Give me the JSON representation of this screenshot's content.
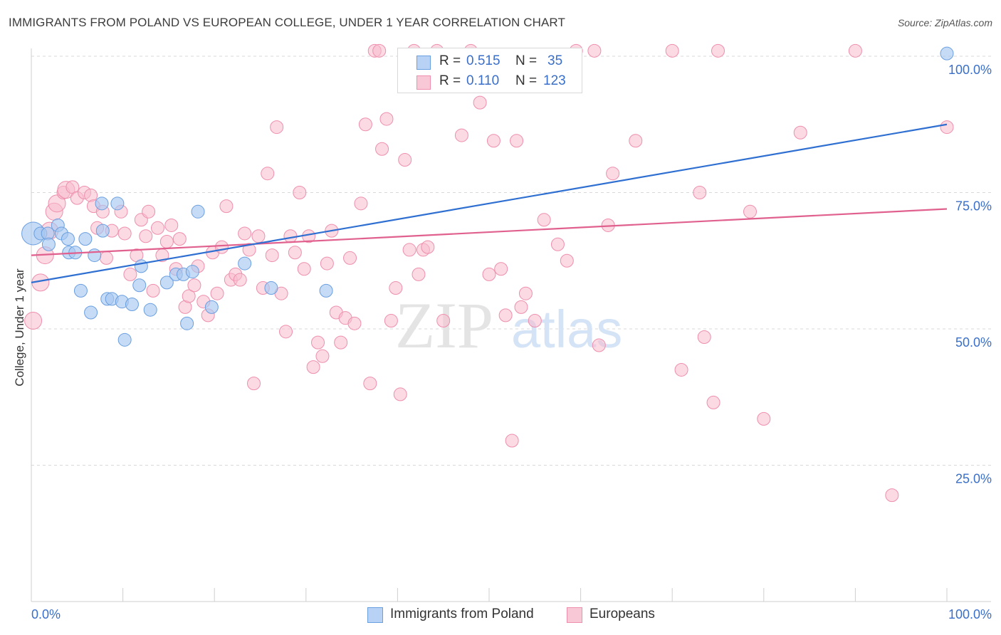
{
  "title": "IMMIGRANTS FROM POLAND VS EUROPEAN COLLEGE, UNDER 1 YEAR CORRELATION CHART",
  "source": "Source: ZipAtlas.com",
  "watermark": {
    "zip": "ZIP",
    "atlas": "atlas"
  },
  "legend": {
    "rows": [
      {
        "r_label": "R =",
        "r_value": "0.515",
        "n_label": "N =",
        "n_value": "35"
      },
      {
        "r_label": "R =",
        "r_value": "0.110",
        "n_label": "N =",
        "n_value": "123"
      }
    ]
  },
  "bottom_legend": [
    "Immigrants from Poland",
    "Europeans"
  ],
  "chart_data": {
    "type": "scatter",
    "title": "IMMIGRANTS FROM POLAND VS EUROPEAN COLLEGE, UNDER 1 YEAR CORRELATION CHART",
    "xlabel": "",
    "ylabel": "College, Under 1 year",
    "xlim": [
      0,
      100
    ],
    "ylim": [
      0,
      104
    ],
    "x_tick_labels": [
      "0.0%",
      "100.0%"
    ],
    "y_ticks": [
      25,
      50,
      75,
      100
    ],
    "y_tick_labels": [
      "25.0%",
      "50.0%",
      "75.0%",
      "100.0%"
    ],
    "grid": true,
    "legend_position": "top-center",
    "colors": {
      "poland_fill": "#a8c8f0",
      "poland_stroke": "#6a9fe0",
      "poland_line": "#2e6fd1",
      "europe_fill": "#f7bccd",
      "europe_stroke": "#ee8fad",
      "europe_line": "#e0608e",
      "tick_label": "#3a6fc9"
    },
    "series": [
      {
        "name": "Immigrants from Poland",
        "r": 0.515,
        "n": 35,
        "trend": {
          "x": [
            0,
            100
          ],
          "y": [
            58.5,
            87.5
          ]
        },
        "points": [
          [
            0.2,
            67.5,
            16
          ],
          [
            1.0,
            67.5,
            9
          ],
          [
            1.8,
            67.5,
            9
          ],
          [
            1.9,
            65.5,
            9
          ],
          [
            2.9,
            69.0,
            9
          ],
          [
            3.3,
            67.5,
            9
          ],
          [
            4.0,
            66.5,
            9
          ],
          [
            4.1,
            64.0,
            9
          ],
          [
            4.8,
            64.0,
            9
          ],
          [
            5.4,
            57.0,
            9
          ],
          [
            5.9,
            66.5,
            9
          ],
          [
            6.5,
            53.0,
            9
          ],
          [
            6.9,
            63.5,
            9
          ],
          [
            7.7,
            73.0,
            9
          ],
          [
            7.8,
            68.0,
            9
          ],
          [
            8.3,
            55.5,
            9
          ],
          [
            8.8,
            55.5,
            9
          ],
          [
            9.4,
            73.0,
            9
          ],
          [
            9.9,
            55.0,
            9
          ],
          [
            10.2,
            48.0,
            9
          ],
          [
            11.0,
            54.5,
            9
          ],
          [
            11.8,
            58.0,
            9
          ],
          [
            12.0,
            61.5,
            9
          ],
          [
            13.0,
            53.5,
            9
          ],
          [
            14.8,
            58.5,
            9
          ],
          [
            15.8,
            60.0,
            9
          ],
          [
            16.6,
            60.0,
            9
          ],
          [
            17.0,
            51.0,
            9
          ],
          [
            17.6,
            60.5,
            9
          ],
          [
            18.2,
            71.5,
            9
          ],
          [
            19.7,
            54.0,
            9
          ],
          [
            23.3,
            62.0,
            9
          ],
          [
            26.2,
            57.5,
            9
          ],
          [
            32.2,
            57.0,
            9
          ],
          [
            100.0,
            100.5,
            9
          ]
        ]
      },
      {
        "name": "Europeans",
        "r": 0.11,
        "n": 123,
        "trend": {
          "x": [
            0,
            100
          ],
          "y": [
            63.5,
            72.0
          ]
        },
        "points": [
          [
            0.2,
            51.5,
            12
          ],
          [
            1.0,
            58.5,
            12
          ],
          [
            1.5,
            63.5,
            12
          ],
          [
            2.0,
            68.0,
            12
          ],
          [
            2.5,
            71.5,
            12
          ],
          [
            2.8,
            73.0,
            12
          ],
          [
            3.5,
            75.0,
            9
          ],
          [
            3.8,
            75.5,
            12
          ],
          [
            4.5,
            76.0,
            9
          ],
          [
            5.0,
            74.0,
            9
          ],
          [
            5.8,
            75.0,
            9
          ],
          [
            6.5,
            74.5,
            9
          ],
          [
            6.8,
            72.5,
            9
          ],
          [
            7.2,
            68.5,
            9
          ],
          [
            7.8,
            71.5,
            9
          ],
          [
            8.2,
            63.0,
            9
          ],
          [
            8.8,
            68.0,
            9
          ],
          [
            9.8,
            71.5,
            9
          ],
          [
            10.2,
            67.5,
            9
          ],
          [
            10.8,
            60.0,
            9
          ],
          [
            11.5,
            63.5,
            9
          ],
          [
            12.0,
            70.0,
            9
          ],
          [
            12.5,
            67.0,
            9
          ],
          [
            12.8,
            71.5,
            9
          ],
          [
            13.3,
            57.0,
            9
          ],
          [
            13.8,
            68.5,
            9
          ],
          [
            14.3,
            63.5,
            9
          ],
          [
            14.8,
            66.0,
            9
          ],
          [
            15.3,
            69.0,
            9
          ],
          [
            15.8,
            61.0,
            9
          ],
          [
            16.2,
            66.5,
            9
          ],
          [
            16.8,
            54.0,
            9
          ],
          [
            17.2,
            56.0,
            9
          ],
          [
            17.8,
            58.0,
            9
          ],
          [
            18.2,
            61.5,
            9
          ],
          [
            18.8,
            55.0,
            9
          ],
          [
            19.3,
            52.5,
            9
          ],
          [
            19.8,
            64.0,
            9
          ],
          [
            20.3,
            56.5,
            9
          ],
          [
            20.8,
            65.0,
            9
          ],
          [
            21.3,
            72.5,
            9
          ],
          [
            21.8,
            59.0,
            9
          ],
          [
            22.3,
            60.0,
            9
          ],
          [
            22.8,
            59.0,
            9
          ],
          [
            23.3,
            67.5,
            9
          ],
          [
            23.8,
            64.5,
            9
          ],
          [
            24.3,
            40.0,
            9
          ],
          [
            24.8,
            67.0,
            9
          ],
          [
            25.3,
            57.5,
            9
          ],
          [
            25.8,
            78.5,
            9
          ],
          [
            26.3,
            63.5,
            9
          ],
          [
            26.8,
            87.0,
            9
          ],
          [
            27.3,
            56.5,
            9
          ],
          [
            27.8,
            49.5,
            9
          ],
          [
            28.3,
            67.0,
            9
          ],
          [
            28.8,
            64.0,
            9
          ],
          [
            29.3,
            75.0,
            9
          ],
          [
            29.8,
            61.0,
            9
          ],
          [
            30.3,
            67.0,
            9
          ],
          [
            30.8,
            43.0,
            9
          ],
          [
            31.3,
            47.5,
            9
          ],
          [
            31.8,
            45.0,
            9
          ],
          [
            32.3,
            62.0,
            9
          ],
          [
            32.8,
            68.0,
            9
          ],
          [
            33.3,
            53.0,
            9
          ],
          [
            33.8,
            47.5,
            9
          ],
          [
            34.3,
            52.0,
            9
          ],
          [
            34.8,
            63.0,
            9
          ],
          [
            35.3,
            51.0,
            9
          ],
          [
            36.0,
            73.0,
            9
          ],
          [
            36.5,
            87.5,
            9
          ],
          [
            37.0,
            40.0,
            9
          ],
          [
            37.5,
            101.0,
            9
          ],
          [
            38.0,
            101.0,
            9
          ],
          [
            38.3,
            83.0,
            9
          ],
          [
            38.8,
            88.5,
            9
          ],
          [
            39.3,
            51.5,
            9
          ],
          [
            39.8,
            57.5,
            9
          ],
          [
            40.3,
            38.0,
            9
          ],
          [
            40.8,
            81.0,
            9
          ],
          [
            41.3,
            64.5,
            9
          ],
          [
            41.8,
            101.0,
            9
          ],
          [
            42.3,
            60.0,
            9
          ],
          [
            42.8,
            64.5,
            9
          ],
          [
            43.3,
            65.0,
            9
          ],
          [
            44.3,
            101.0,
            9
          ],
          [
            45.0,
            51.5,
            9
          ],
          [
            47.0,
            85.5,
            9
          ],
          [
            48.0,
            101.0,
            9
          ],
          [
            49.0,
            91.5,
            9
          ],
          [
            50.0,
            60.0,
            9
          ],
          [
            50.5,
            84.5,
            9
          ],
          [
            51.3,
            61.0,
            9
          ],
          [
            51.8,
            52.5,
            9
          ],
          [
            52.5,
            29.5,
            9
          ],
          [
            53.0,
            84.5,
            9
          ],
          [
            53.5,
            54.0,
            9
          ],
          [
            54.0,
            56.5,
            9
          ],
          [
            55.0,
            51.5,
            9
          ],
          [
            56.0,
            70.0,
            9
          ],
          [
            57.5,
            65.5,
            9
          ],
          [
            58.5,
            62.5,
            9
          ],
          [
            59.5,
            101.0,
            9
          ],
          [
            61.5,
            101.0,
            9
          ],
          [
            62.0,
            47.0,
            9
          ],
          [
            63.0,
            69.0,
            9
          ],
          [
            63.5,
            78.5,
            9
          ],
          [
            66.0,
            84.5,
            9
          ],
          [
            70.0,
            101.0,
            9
          ],
          [
            71.0,
            42.5,
            9
          ],
          [
            73.0,
            75.0,
            9
          ],
          [
            73.5,
            48.5,
            9
          ],
          [
            74.5,
            36.5,
            9
          ],
          [
            75.0,
            101.0,
            9
          ],
          [
            78.5,
            71.5,
            9
          ],
          [
            80.0,
            33.5,
            9
          ],
          [
            84.0,
            86.0,
            9
          ],
          [
            90.0,
            101.0,
            9
          ],
          [
            94.0,
            19.5,
            9
          ],
          [
            100.0,
            87.0,
            9
          ]
        ]
      }
    ]
  }
}
